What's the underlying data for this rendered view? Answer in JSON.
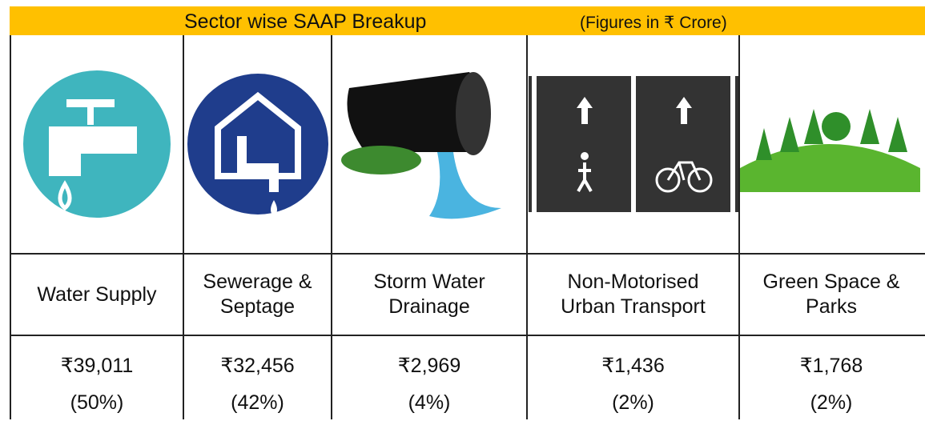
{
  "header": {
    "title": "Sector wise SAAP Breakup",
    "note": "(Figures in ₹ Crore)"
  },
  "table": {
    "columns": [
      {
        "name": "Water Supply",
        "amount": "₹39,011",
        "share": "(50%)"
      },
      {
        "name": "Sewerage & Septage",
        "amount": "₹32,456",
        "share": "(42%)"
      },
      {
        "name": "Storm Water Drainage",
        "amount": "₹2,969",
        "share": "(4%)"
      },
      {
        "name": "Non-Motorised Urban Transport",
        "amount": "₹1,436",
        "share": "(2%)"
      },
      {
        "name": "Green Space & Parks",
        "amount": "₹1,768",
        "share": "(2%)"
      }
    ]
  }
}
